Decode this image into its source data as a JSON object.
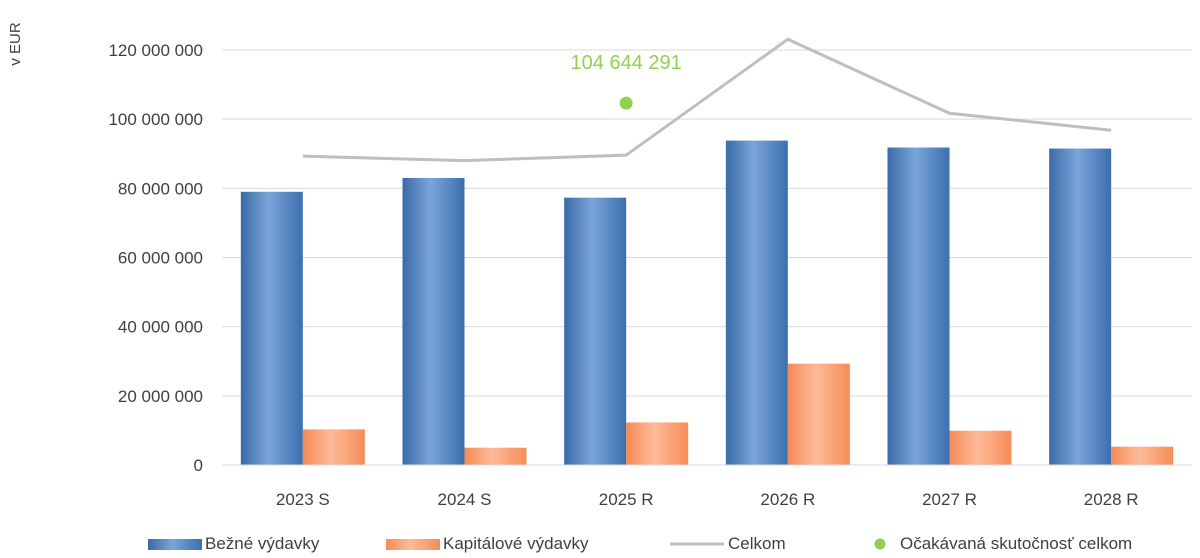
{
  "chart_data": {
    "type": "bar",
    "categories": [
      "2023 S",
      "2024 S",
      "2025 R",
      "2026 R",
      "2027 R",
      "2028 R"
    ],
    "ylabel": "v EUR",
    "ylim": [
      0,
      120000000
    ],
    "yticks": [
      0,
      20000000,
      40000000,
      60000000,
      80000000,
      100000000,
      120000000
    ],
    "ytick_labels": [
      "0",
      "20 000 000",
      "40 000 000",
      "60 000 000",
      "80 000 000",
      "100 000 000",
      "120 000 000"
    ],
    "grid": true,
    "legend_position": "bottom",
    "series": [
      {
        "name": "Bežné výdavky",
        "type": "bar",
        "color": "#4a7ebb",
        "values": [
          79000000,
          83000000,
          77300000,
          93800000,
          91800000,
          91500000
        ]
      },
      {
        "name": "Kapitálové výdavky",
        "type": "bar",
        "color": "#f79a6e",
        "values": [
          10300000,
          5000000,
          12300000,
          29300000,
          9900000,
          5300000
        ]
      },
      {
        "name": "Celkom",
        "type": "line",
        "color": "#bfbfbf",
        "values": [
          89300000,
          88000000,
          89600000,
          123100000,
          101700000,
          96800000
        ]
      },
      {
        "name": "Očakávaná skutočnosť celkom",
        "type": "scatter",
        "color": "#92d050",
        "points": [
          {
            "category": "2025 R",
            "value": 104644291,
            "label": "104 644 291"
          }
        ]
      }
    ]
  }
}
